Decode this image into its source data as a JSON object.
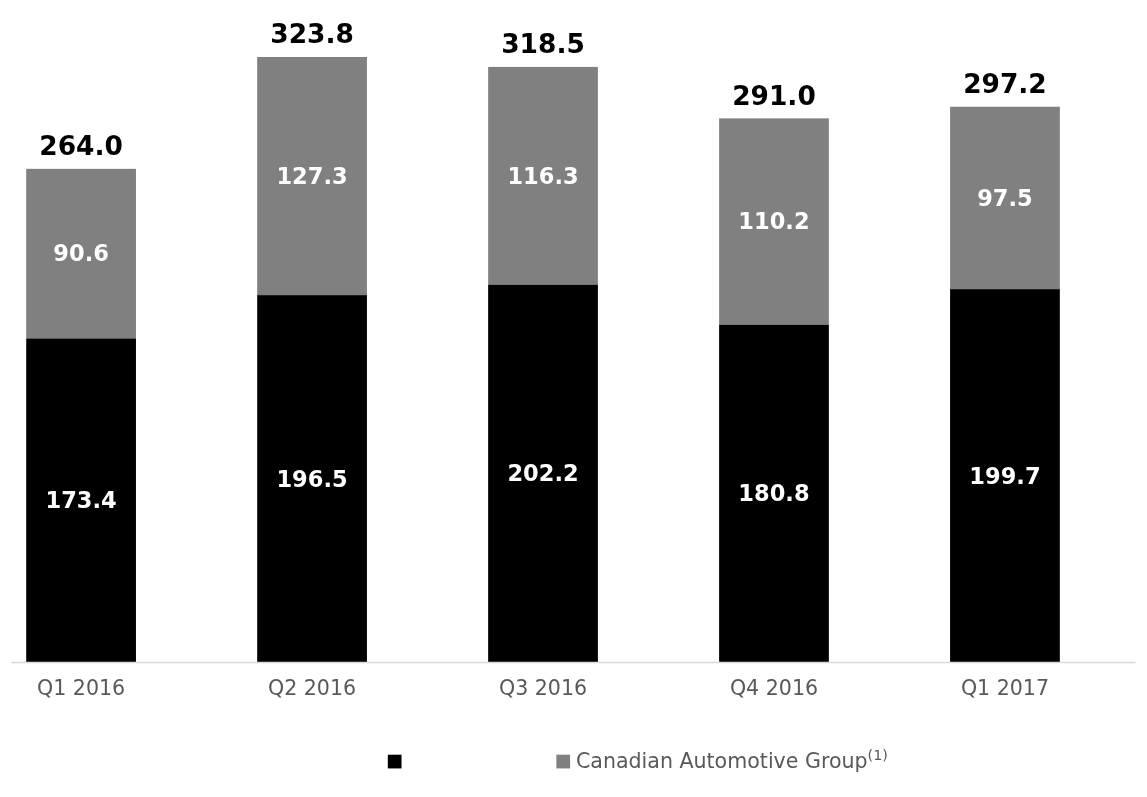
{
  "chart_data": {
    "type": "bar",
    "stacked": true,
    "categories": [
      "Q1 2016",
      "Q2 2016",
      "Q3 2016",
      "Q4 2016",
      "Q1 2017"
    ],
    "series": [
      {
        "color": "#000000",
        "values": [
          173.4,
          196.5,
          202.2,
          180.8,
          199.7
        ]
      },
      {
        "name": "Canadian Automotive Group$^{(1)}$",
        "color": "#808080",
        "values": [
          90.6,
          127.3,
          116.3,
          110.2,
          97.5
        ]
      }
    ],
    "data_labels": true,
    "totals": [
      "264.0",
      "323.8",
      "318.5",
      "291.0",
      "297.2"
    ],
    "legend": "bottom"
  }
}
